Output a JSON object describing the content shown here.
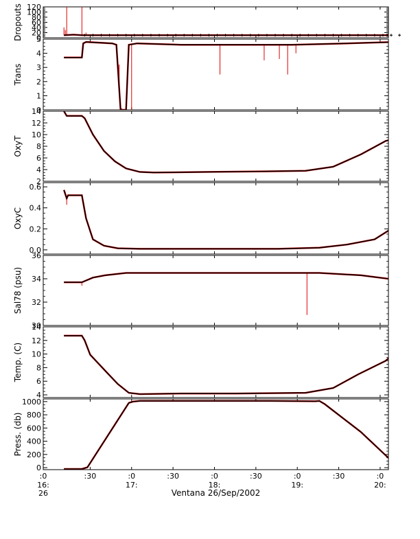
{
  "chart_data": {
    "type": "line",
    "xlabel": "Ventana 26/Sep/2002",
    "x_unit": "minutes after 16:26",
    "xlim": [
      0,
      250
    ],
    "x_ticks": [
      {
        "value": 0,
        "label": ":0",
        "sub1": "16:",
        "sub2": "26"
      },
      {
        "value": 34,
        "label": ":30",
        "sub1": "",
        "sub2": ""
      },
      {
        "value": 64,
        "label": ":0",
        "sub1": "17:",
        "sub2": ""
      },
      {
        "value": 94,
        "label": ":30",
        "sub1": "",
        "sub2": ""
      },
      {
        "value": 124,
        "label": ":0",
        "sub1": "18:",
        "sub2": ""
      },
      {
        "value": 154,
        "label": ":30",
        "sub1": "",
        "sub2": ""
      },
      {
        "value": 184,
        "label": ":0",
        "sub1": "19:",
        "sub2": ""
      },
      {
        "value": 214,
        "label": ":30",
        "sub1": "",
        "sub2": ""
      },
      {
        "value": 244,
        "label": ":0",
        "sub1": "20:",
        "sub2": ""
      },
      {
        "value": 274,
        "label": ":30",
        "sub1": "",
        "sub2": ""
      }
    ],
    "series_colors": {
      "processed": "#000000",
      "raw": "#dd0000"
    },
    "panels": [
      {
        "name": "Dropouts",
        "ylabel": "Dropouts",
        "ylim": [
          0,
          120
        ],
        "y_ticks": [
          0,
          20,
          40,
          60,
          80,
          100,
          120
        ],
        "tick_labels": [
          "0",
          "20",
          "40",
          "60",
          "80",
          "100",
          "120"
        ],
        "points": [
          [
            15,
            10
          ],
          [
            22,
            12
          ],
          [
            28,
            10
          ],
          [
            40,
            10
          ],
          [
            80,
            10
          ],
          [
            120,
            10
          ],
          [
            160,
            10
          ],
          [
            200,
            10
          ],
          [
            240,
            10
          ],
          [
            260,
            10
          ]
        ],
        "raw_spikes": [
          [
            15,
            40
          ],
          [
            16,
            30
          ],
          [
            17,
            120
          ],
          [
            28,
            120
          ],
          [
            31,
            20
          ]
        ]
      },
      {
        "name": "Trans",
        "ylabel": "Trans",
        "ylim": [
          0,
          5
        ],
        "y_ticks": [
          0,
          1,
          2,
          3,
          4,
          5
        ],
        "tick_labels": [
          "0",
          "1",
          "2",
          "3",
          "4",
          "5"
        ],
        "points": [
          [
            15,
            3.7
          ],
          [
            28,
            3.7
          ],
          [
            29,
            4.7
          ],
          [
            31,
            4.8
          ],
          [
            50,
            4.7
          ],
          [
            53,
            4.6
          ],
          [
            56,
            0
          ],
          [
            60,
            0
          ],
          [
            62,
            4.6
          ],
          [
            68,
            4.7
          ],
          [
            100,
            4.6
          ],
          [
            140,
            4.6
          ],
          [
            180,
            4.6
          ],
          [
            220,
            4.7
          ],
          [
            255,
            4.8
          ],
          [
            258,
            4.7
          ],
          [
            259,
            3.6
          ]
        ],
        "raw_spikes": [
          [
            55,
            3.2
          ],
          [
            57,
            0.1
          ],
          [
            64,
            0
          ],
          [
            128,
            2.5
          ],
          [
            160,
            3.5
          ],
          [
            171,
            3.6
          ],
          [
            177,
            2.5
          ],
          [
            183,
            4.0
          ]
        ]
      },
      {
        "name": "OxyT",
        "ylabel": "OxyT",
        "ylim": [
          2,
          14
        ],
        "y_ticks": [
          2,
          4,
          6,
          8,
          10,
          12,
          14
        ],
        "tick_labels": [
          "2",
          "4",
          "6",
          "8",
          "10",
          "12",
          "14"
        ],
        "points": [
          [
            15,
            14
          ],
          [
            17,
            13.2
          ],
          [
            28,
            13.2
          ],
          [
            30,
            12.8
          ],
          [
            36,
            10
          ],
          [
            44,
            7.2
          ],
          [
            52,
            5.4
          ],
          [
            60,
            4.2
          ],
          [
            70,
            3.6
          ],
          [
            80,
            3.5
          ],
          [
            120,
            3.6
          ],
          [
            160,
            3.7
          ],
          [
            190,
            3.8
          ],
          [
            210,
            4.5
          ],
          [
            230,
            6.6
          ],
          [
            248,
            8.9
          ],
          [
            256,
            9.4
          ],
          [
            259,
            10.2
          ]
        ],
        "raw_spikes": []
      },
      {
        "name": "OxyC",
        "ylabel": "OxyC",
        "ylim": [
          -0.04,
          0.64
        ],
        "y_ticks": [
          0.0,
          0.2,
          0.4,
          0.6
        ],
        "tick_labels": [
          "0.0",
          "0.2",
          "0.4",
          "0.6"
        ],
        "points": [
          [
            15,
            0.57
          ],
          [
            17,
            0.49
          ],
          [
            18,
            0.52
          ],
          [
            28,
            0.52
          ],
          [
            31,
            0.3
          ],
          [
            36,
            0.1
          ],
          [
            44,
            0.04
          ],
          [
            54,
            0.015
          ],
          [
            70,
            0.01
          ],
          [
            120,
            0.01
          ],
          [
            170,
            0.01
          ],
          [
            200,
            0.02
          ],
          [
            220,
            0.05
          ],
          [
            240,
            0.1
          ],
          [
            252,
            0.2
          ],
          [
            257,
            0.35
          ],
          [
            259,
            0.6
          ]
        ],
        "raw_spikes": [
          [
            17,
            0.43
          ]
        ]
      },
      {
        "name": "Sal78",
        "ylabel": "Sal78 (psu)",
        "ylim": [
          30,
          36
        ],
        "y_ticks": [
          30,
          32,
          34,
          36
        ],
        "tick_labels": [
          "30",
          "32",
          "34",
          "36"
        ],
        "points": [
          [
            15,
            33.7
          ],
          [
            28,
            33.7
          ],
          [
            30,
            33.8
          ],
          [
            36,
            34.1
          ],
          [
            45,
            34.3
          ],
          [
            60,
            34.5
          ],
          [
            120,
            34.5
          ],
          [
            200,
            34.5
          ],
          [
            230,
            34.3
          ],
          [
            250,
            34.0
          ],
          [
            257,
            33.9
          ],
          [
            259,
            33.6
          ]
        ],
        "raw_spikes": [
          [
            28,
            33.4
          ],
          [
            191,
            30.9
          ]
        ]
      },
      {
        "name": "Temp",
        "ylabel": "Temp. (C)",
        "ylim": [
          3.6,
          14
        ],
        "y_ticks": [
          4,
          6,
          8,
          10,
          12,
          14
        ],
        "tick_labels": [
          "4",
          "6",
          "8",
          "10",
          "12",
          "14"
        ],
        "points": [
          [
            15,
            12.7
          ],
          [
            28,
            12.7
          ],
          [
            30,
            12
          ],
          [
            34,
            9.9
          ],
          [
            40,
            8.6
          ],
          [
            46,
            7.3
          ],
          [
            54,
            5.6
          ],
          [
            62,
            4.3
          ],
          [
            70,
            4.1
          ],
          [
            100,
            4.2
          ],
          [
            140,
            4.2
          ],
          [
            190,
            4.3
          ],
          [
            210,
            5.0
          ],
          [
            228,
            7.0
          ],
          [
            248,
            9.0
          ],
          [
            256,
            10.5
          ],
          [
            259,
            13.0
          ]
        ],
        "raw_spikes": []
      },
      {
        "name": "Press",
        "ylabel": "Press. (db)",
        "ylim": [
          -30,
          1040
        ],
        "y_ticks": [
          0,
          200,
          400,
          600,
          800,
          1000
        ],
        "tick_labels": [
          "0",
          "200",
          "400",
          "600",
          "800",
          "1000"
        ],
        "points": [
          [
            15,
            -20
          ],
          [
            28,
            -20
          ],
          [
            32,
            5
          ],
          [
            62,
            980
          ],
          [
            65,
            1000
          ],
          [
            70,
            1010
          ],
          [
            120,
            1010
          ],
          [
            165,
            1010
          ],
          [
            197,
            1005
          ],
          [
            200,
            1010
          ],
          [
            204,
            960
          ],
          [
            230,
            540
          ],
          [
            258,
            -10
          ],
          [
            259,
            -25
          ]
        ],
        "raw_spikes": []
      }
    ]
  }
}
